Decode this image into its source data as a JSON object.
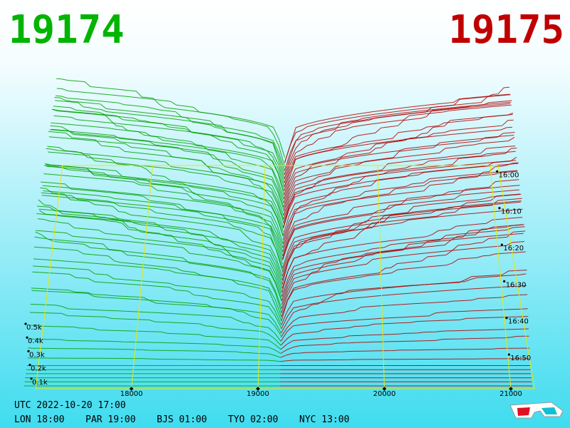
{
  "header": {
    "best_bid": "19174",
    "best_ask": "19175"
  },
  "price_axis": {
    "ticks": [
      18000,
      19000,
      20000,
      21000
    ]
  },
  "time_axis": {
    "ticks": [
      "16:00",
      "16:10",
      "16:20",
      "16:30",
      "16:40",
      "16:50"
    ]
  },
  "depth_axis": {
    "ticks": [
      "0.5k",
      "0.4k",
      "0.3k",
      "0.2k",
      "0.1k"
    ]
  },
  "footer": {
    "utc": "UTC 2022-10-20 17:00",
    "clocks": [
      "LON 18:00",
      "PAR 19:00",
      "BJS 01:00",
      "TYO 02:00",
      "NYC 13:00"
    ]
  }
}
